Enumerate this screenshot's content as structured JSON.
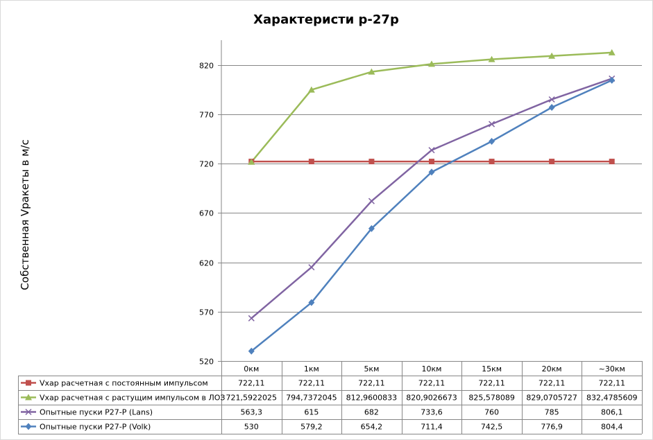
{
  "chart_data": {
    "type": "line",
    "title": "Характеристи р-27р",
    "xlabel": "",
    "ylabel": "Собственная Vракеты в м/с",
    "ylim": [
      520,
      845
    ],
    "yticks": [
      520,
      570,
      620,
      670,
      720,
      770,
      820
    ],
    "grid": true,
    "legend": "data-table-bottom",
    "categories": [
      "0км",
      "1км",
      "5км",
      "10км",
      "15км",
      "20км",
      "~30км"
    ],
    "series": [
      {
        "name": "Vхар расчетная с постоянным импульсом",
        "color": "#c0504d",
        "marker": "square",
        "values": [
          722.11,
          722.11,
          722.11,
          722.11,
          722.11,
          722.11,
          722.11
        ],
        "labels": [
          "722,11",
          "722,11",
          "722,11",
          "722,11",
          "722,11",
          "722,11",
          "722,11"
        ]
      },
      {
        "name": "Vхар расчетная с растущим импульсом в ЛОЗ",
        "color": "#9bbb59",
        "marker": "triangle",
        "values": [
          721.5922025,
          794.7372045,
          812.9600833,
          820.9026673,
          825.578089,
          829.0705727,
          832.4785609
        ],
        "labels": [
          "721,5922025",
          "794,7372045",
          "812,9600833",
          "820,9026673",
          "825,578089",
          "829,0705727",
          "832,4785609"
        ]
      },
      {
        "name": "Опытные пуски Р27-Р (Lans)",
        "color": "#8064a2",
        "marker": "x",
        "values": [
          563.3,
          615,
          682,
          733.6,
          760,
          785,
          806.1
        ],
        "labels": [
          "563,3",
          "615",
          "682",
          "733,6",
          "760",
          "785",
          "806,1"
        ]
      },
      {
        "name": "Опытные пуски Р27-Р (Volk)",
        "color": "#4f81bd",
        "marker": "diamond",
        "values": [
          530,
          579.2,
          654.2,
          711.4,
          742.5,
          776.9,
          804.4
        ],
        "labels": [
          "530",
          "579,2",
          "654,2",
          "711,4",
          "742,5",
          "776,9",
          "804,4"
        ]
      }
    ]
  }
}
